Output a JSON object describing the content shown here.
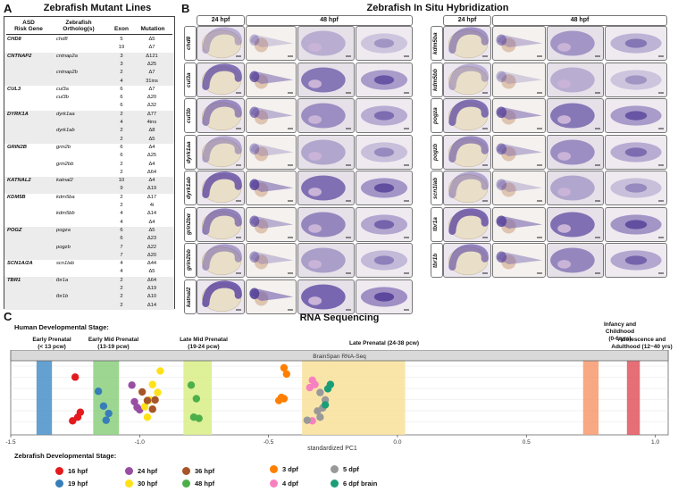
{
  "panelA": {
    "letter": "A",
    "title": "Zebrafish Mutant Lines",
    "headers": {
      "gene": "ASD\nRisk Gene",
      "ortholog": "Zebrafish\nOrtholog(s)",
      "exon": "Exon",
      "mutation": "Mutation"
    },
    "rows": [
      {
        "gene": "CHD8",
        "ortholog": "chd8",
        "exon": "5",
        "mutation": "Δ5"
      },
      {
        "gene": "",
        "ortholog": "",
        "exon": "19",
        "mutation": "Δ7"
      },
      {
        "gene": "CNTNAP2",
        "ortholog": "cntnap2a",
        "exon": "3",
        "mutation": "Δ121"
      },
      {
        "gene": "",
        "ortholog": "",
        "exon": "3",
        "mutation": "Δ25"
      },
      {
        "gene": "",
        "ortholog": "cntnap2b",
        "exon": "2",
        "mutation": "Δ7"
      },
      {
        "gene": "",
        "ortholog": "",
        "exon": "4",
        "mutation": "31ins"
      },
      {
        "gene": "CUL3",
        "ortholog": "cul3a",
        "exon": "6",
        "mutation": "Δ7"
      },
      {
        "gene": "",
        "ortholog": "cul3b",
        "exon": "6",
        "mutation": "Δ20"
      },
      {
        "gene": "",
        "ortholog": "",
        "exon": "6",
        "mutation": "Δ32"
      },
      {
        "gene": "DYRK1A",
        "ortholog": "dyrk1aa",
        "exon": "2",
        "mutation": "Δ77"
      },
      {
        "gene": "",
        "ortholog": "",
        "exon": "4",
        "mutation": "4ins"
      },
      {
        "gene": "",
        "ortholog": "dyrk1ab",
        "exon": "2",
        "mutation": "Δ8"
      },
      {
        "gene": "",
        "ortholog": "",
        "exon": "2",
        "mutation": "Δ5"
      },
      {
        "gene": "GRIN2B",
        "ortholog": "grin2b",
        "exon": "6",
        "mutation": "Δ4"
      },
      {
        "gene": "",
        "ortholog": "",
        "exon": "6",
        "mutation": "Δ25"
      },
      {
        "gene": "",
        "ortholog": "grin2bb",
        "exon": "2",
        "mutation": "Δ4"
      },
      {
        "gene": "",
        "ortholog": "",
        "exon": "2",
        "mutation": "Δ64"
      },
      {
        "gene": "KATNAL2",
        "ortholog": "katnal2",
        "exon": "10",
        "mutation": "Δ4"
      },
      {
        "gene": "",
        "ortholog": "",
        "exon": "9",
        "mutation": "Δ19"
      },
      {
        "gene": "KDM5B",
        "ortholog": "kdm5ba",
        "exon": "2",
        "mutation": "Δ17"
      },
      {
        "gene": "",
        "ortholog": "",
        "exon": "2",
        "mutation": "4i"
      },
      {
        "gene": "",
        "ortholog": "kdm5bb",
        "exon": "4",
        "mutation": "Δ14"
      },
      {
        "gene": "",
        "ortholog": "",
        "exon": "4",
        "mutation": "Δ4"
      },
      {
        "gene": "POGZ",
        "ortholog": "pogza",
        "exon": "6",
        "mutation": "Δ5"
      },
      {
        "gene": "",
        "ortholog": "",
        "exon": "6",
        "mutation": "Δ23"
      },
      {
        "gene": "",
        "ortholog": "pogzb",
        "exon": "7",
        "mutation": "Δ22"
      },
      {
        "gene": "",
        "ortholog": "",
        "exon": "7",
        "mutation": "Δ20"
      },
      {
        "gene": "SCN1A/2A",
        "ortholog": "scn1lab",
        "exon": "4",
        "mutation": "Δ44"
      },
      {
        "gene": "",
        "ortholog": "",
        "exon": "4",
        "mutation": "Δ5"
      },
      {
        "gene": "TBR1",
        "ortholog": "tbr1a",
        "exon": "2",
        "mutation": "Δ64"
      },
      {
        "gene": "",
        "ortholog": "",
        "exon": "2",
        "mutation": "Δ19"
      },
      {
        "gene": "",
        "ortholog": "tbr1b",
        "exon": "2",
        "mutation": "Δ10"
      },
      {
        "gene": "",
        "ortholog": "",
        "exon": "2",
        "mutation": "Δ14"
      }
    ]
  },
  "panelB": {
    "letter": "B",
    "title": "Zebrafish In Situ Hybridization",
    "col_24": "24 hpf",
    "col_48": "48 hpf",
    "left_genes": [
      "chd8",
      "cul3a",
      "cul3b",
      "dyrk1aa",
      "dyrk1ab",
      "grin2bα",
      "grin2bb",
      "katnal2"
    ],
    "right_genes": [
      "kdm5ba",
      "kdm5bb",
      "pogza",
      "pogzb",
      "scn1lab",
      "tbr1a",
      "tbr1b"
    ],
    "annotations": {
      "ot": "OT",
      "mhb": "MHB",
      "hb": "HB",
      "tel": "tel"
    }
  },
  "panelC": {
    "letter": "C",
    "title": "RNA Sequencing",
    "human_stage_title": "Human Developmental Stage:",
    "stages": [
      "Early Prenatal\n(< 13 pcw)",
      "Early Mid Prenatal\n(13-19 pcw)",
      "Late Mid Prenatal\n(19-24 pcw)",
      "Late Prenatal (24-38 pcw)",
      "Infancy and\nChildhood\n(0-6 yrs)",
      "Adolescence and\nAdulthood (12~40 yrs)"
    ],
    "strip_label": "BrainSpan RNA-Seq",
    "zebrafish_stage_title": "Zebrafish Developmental Stage:",
    "legend": [
      {
        "label": "16 hpf",
        "color": "#e41a1c"
      },
      {
        "label": "19 hpf",
        "color": "#377eb8"
      },
      {
        "label": "24 hpf",
        "color": "#984ea3"
      },
      {
        "label": "30 hpf",
        "color": "#ffe119"
      },
      {
        "label": "36 hpf",
        "color": "#a65628"
      },
      {
        "label": "48 hpf",
        "color": "#4daf4a"
      },
      {
        "label": "3 dpf",
        "color": "#ff7f00"
      },
      {
        "label": "4 dpf",
        "color": "#f781bf"
      },
      {
        "label": "5 dpf",
        "color": "#999999"
      },
      {
        "label": "6 dpf brain",
        "color": "#1b9e77"
      }
    ]
  },
  "chart_data": {
    "type": "scatter",
    "title": "RNA Sequencing",
    "xlabel": "standardized PC1",
    "ylabel": "",
    "xlim": [
      -1.5,
      1.05
    ],
    "x_ticks": [
      "-1.5",
      "-1.0",
      "-0.5",
      "0.0",
      "0.5",
      "1.0"
    ],
    "x_tick_values": [
      -1.5,
      -1.0,
      -0.5,
      0.0,
      0.5,
      1.0
    ],
    "bands": [
      {
        "from": -1.4,
        "to": -1.34,
        "color": "#4a90c8"
      },
      {
        "from": -1.18,
        "to": -1.08,
        "color": "#8ccf7e"
      },
      {
        "from": -0.83,
        "to": -0.72,
        "color": "#d8ee86"
      },
      {
        "from": -0.37,
        "to": 0.03,
        "color": "#f9e09a"
      },
      {
        "from": 0.72,
        "to": 0.78,
        "color": "#f79a6e"
      },
      {
        "from": 0.89,
        "to": 0.94,
        "color": "#e0555f"
      }
    ],
    "series": [
      {
        "name": "16 hpf",
        "color": "#e41a1c",
        "points": [
          [
            -1.25,
            0.85
          ],
          [
            -1.24,
            0.2
          ],
          [
            -1.23,
            0.28
          ],
          [
            -1.26,
            0.14
          ]
        ]
      },
      {
        "name": "19 hpf",
        "color": "#377eb8",
        "points": [
          [
            -1.16,
            0.62
          ],
          [
            -1.14,
            0.38
          ],
          [
            -1.12,
            0.26
          ],
          [
            -1.13,
            0.15
          ]
        ]
      },
      {
        "name": "24 hpf",
        "color": "#984ea3",
        "points": [
          [
            -1.03,
            0.72
          ],
          [
            -1.02,
            0.45
          ],
          [
            -1.01,
            0.36
          ],
          [
            -1.0,
            0.32
          ]
        ]
      },
      {
        "name": "30 hpf",
        "color": "#ffe119",
        "points": [
          [
            -0.92,
            0.95
          ],
          [
            -0.95,
            0.73
          ],
          [
            -0.93,
            0.6
          ],
          [
            -0.96,
            0.48
          ],
          [
            -0.98,
            0.37
          ],
          [
            -0.97,
            0.2
          ]
        ]
      },
      {
        "name": "36 hpf",
        "color": "#a65628",
        "points": [
          [
            -0.99,
            0.61
          ],
          [
            -0.97,
            0.47
          ],
          [
            -0.94,
            0.48
          ],
          [
            -0.95,
            0.33
          ]
        ]
      },
      {
        "name": "48 hpf",
        "color": "#4daf4a",
        "points": [
          [
            -0.8,
            0.72
          ],
          [
            -0.78,
            0.5
          ],
          [
            -0.79,
            0.2
          ],
          [
            -0.77,
            0.18
          ]
        ]
      },
      {
        "name": "3 dpf",
        "color": "#ff7f00",
        "points": [
          [
            -0.44,
            1.0
          ],
          [
            -0.43,
            0.9
          ],
          [
            -0.46,
            0.47
          ],
          [
            -0.44,
            0.5
          ],
          [
            -0.45,
            0.52
          ]
        ]
      },
      {
        "name": "4 dpf",
        "color": "#f781bf",
        "points": [
          [
            -0.33,
            0.8
          ],
          [
            -0.32,
            0.73
          ],
          [
            -0.34,
            0.68
          ],
          [
            -0.33,
            0.14
          ]
        ]
      },
      {
        "name": "5 dpf",
        "color": "#999999",
        "points": [
          [
            -0.3,
            0.6
          ],
          [
            -0.28,
            0.48
          ],
          [
            -0.29,
            0.35
          ],
          [
            -0.31,
            0.3
          ],
          [
            -0.3,
            0.2
          ],
          [
            -0.35,
            0.15
          ]
        ]
      },
      {
        "name": "6 dpf brain",
        "color": "#1b9e77",
        "points": [
          [
            -0.26,
            0.73
          ],
          [
            -0.27,
            0.66
          ],
          [
            -0.28,
            0.4
          ]
        ]
      }
    ]
  }
}
